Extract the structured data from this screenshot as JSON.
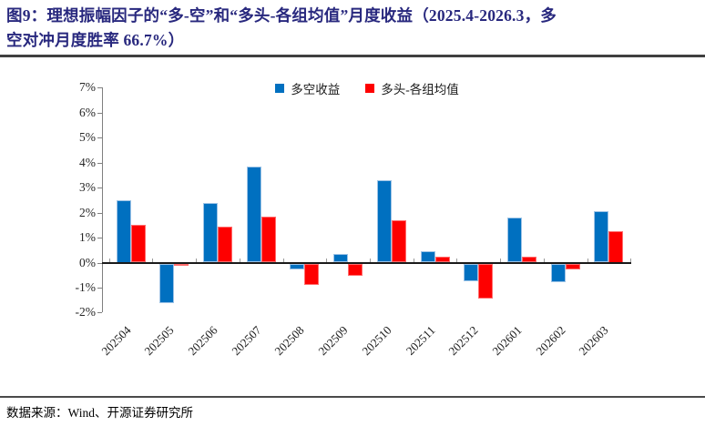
{
  "figure": {
    "title": "图9：理想振幅因子的“多-空”和“多头-各组均值”月度收益（2025.4-2026.3，多空对冲月度胜率 66.7%）",
    "title_lines": [
      "图9：理想振幅因子的“多-空”和“多头-各组均值”月度收益（2025.4-2026.3，多",
      "空对冲月度胜率 66.7%）"
    ],
    "source": "数据来源：Wind、开源证券研究所"
  },
  "colors": {
    "title_text": "#28287E",
    "long_short_bar": "#0070C0",
    "long_minus_mean_bar": "#FE0000",
    "axis_line": "#1A1A1A",
    "tick_gray": "#808080"
  },
  "chart_data": {
    "type": "bar",
    "title": "图9：理想振幅因子的“多-空”和“多头-各组均值”月度收益（2025.4-2026.3，多空对冲月度胜率 66.7%）",
    "categories": [
      "202504",
      "202505",
      "202506",
      "202507",
      "202508",
      "202509",
      "202510",
      "202511",
      "202512",
      "202601",
      "202602",
      "202603"
    ],
    "series": [
      {
        "name": "多空收益",
        "color": "#0070C0",
        "values": [
          2.5,
          -1.6,
          2.4,
          3.85,
          -0.25,
          0.35,
          3.3,
          0.45,
          -0.7,
          1.8,
          -0.75,
          2.05
        ]
      },
      {
        "name": "多头-各组均值",
        "color": "#FE0000",
        "values": [
          1.5,
          -0.05,
          1.45,
          1.85,
          -0.85,
          -0.5,
          1.7,
          0.25,
          -1.4,
          0.25,
          -0.25,
          1.25
        ]
      }
    ],
    "unit": "%",
    "ylim": [
      -2,
      7
    ],
    "y_tick_labels": [
      "7%",
      "6%",
      "5%",
      "4%",
      "3%",
      "2%",
      "1%",
      "0%",
      "-1%",
      "-2%"
    ],
    "grid": false,
    "legend_position": "top-center",
    "xlabel": "",
    "ylabel": ""
  }
}
